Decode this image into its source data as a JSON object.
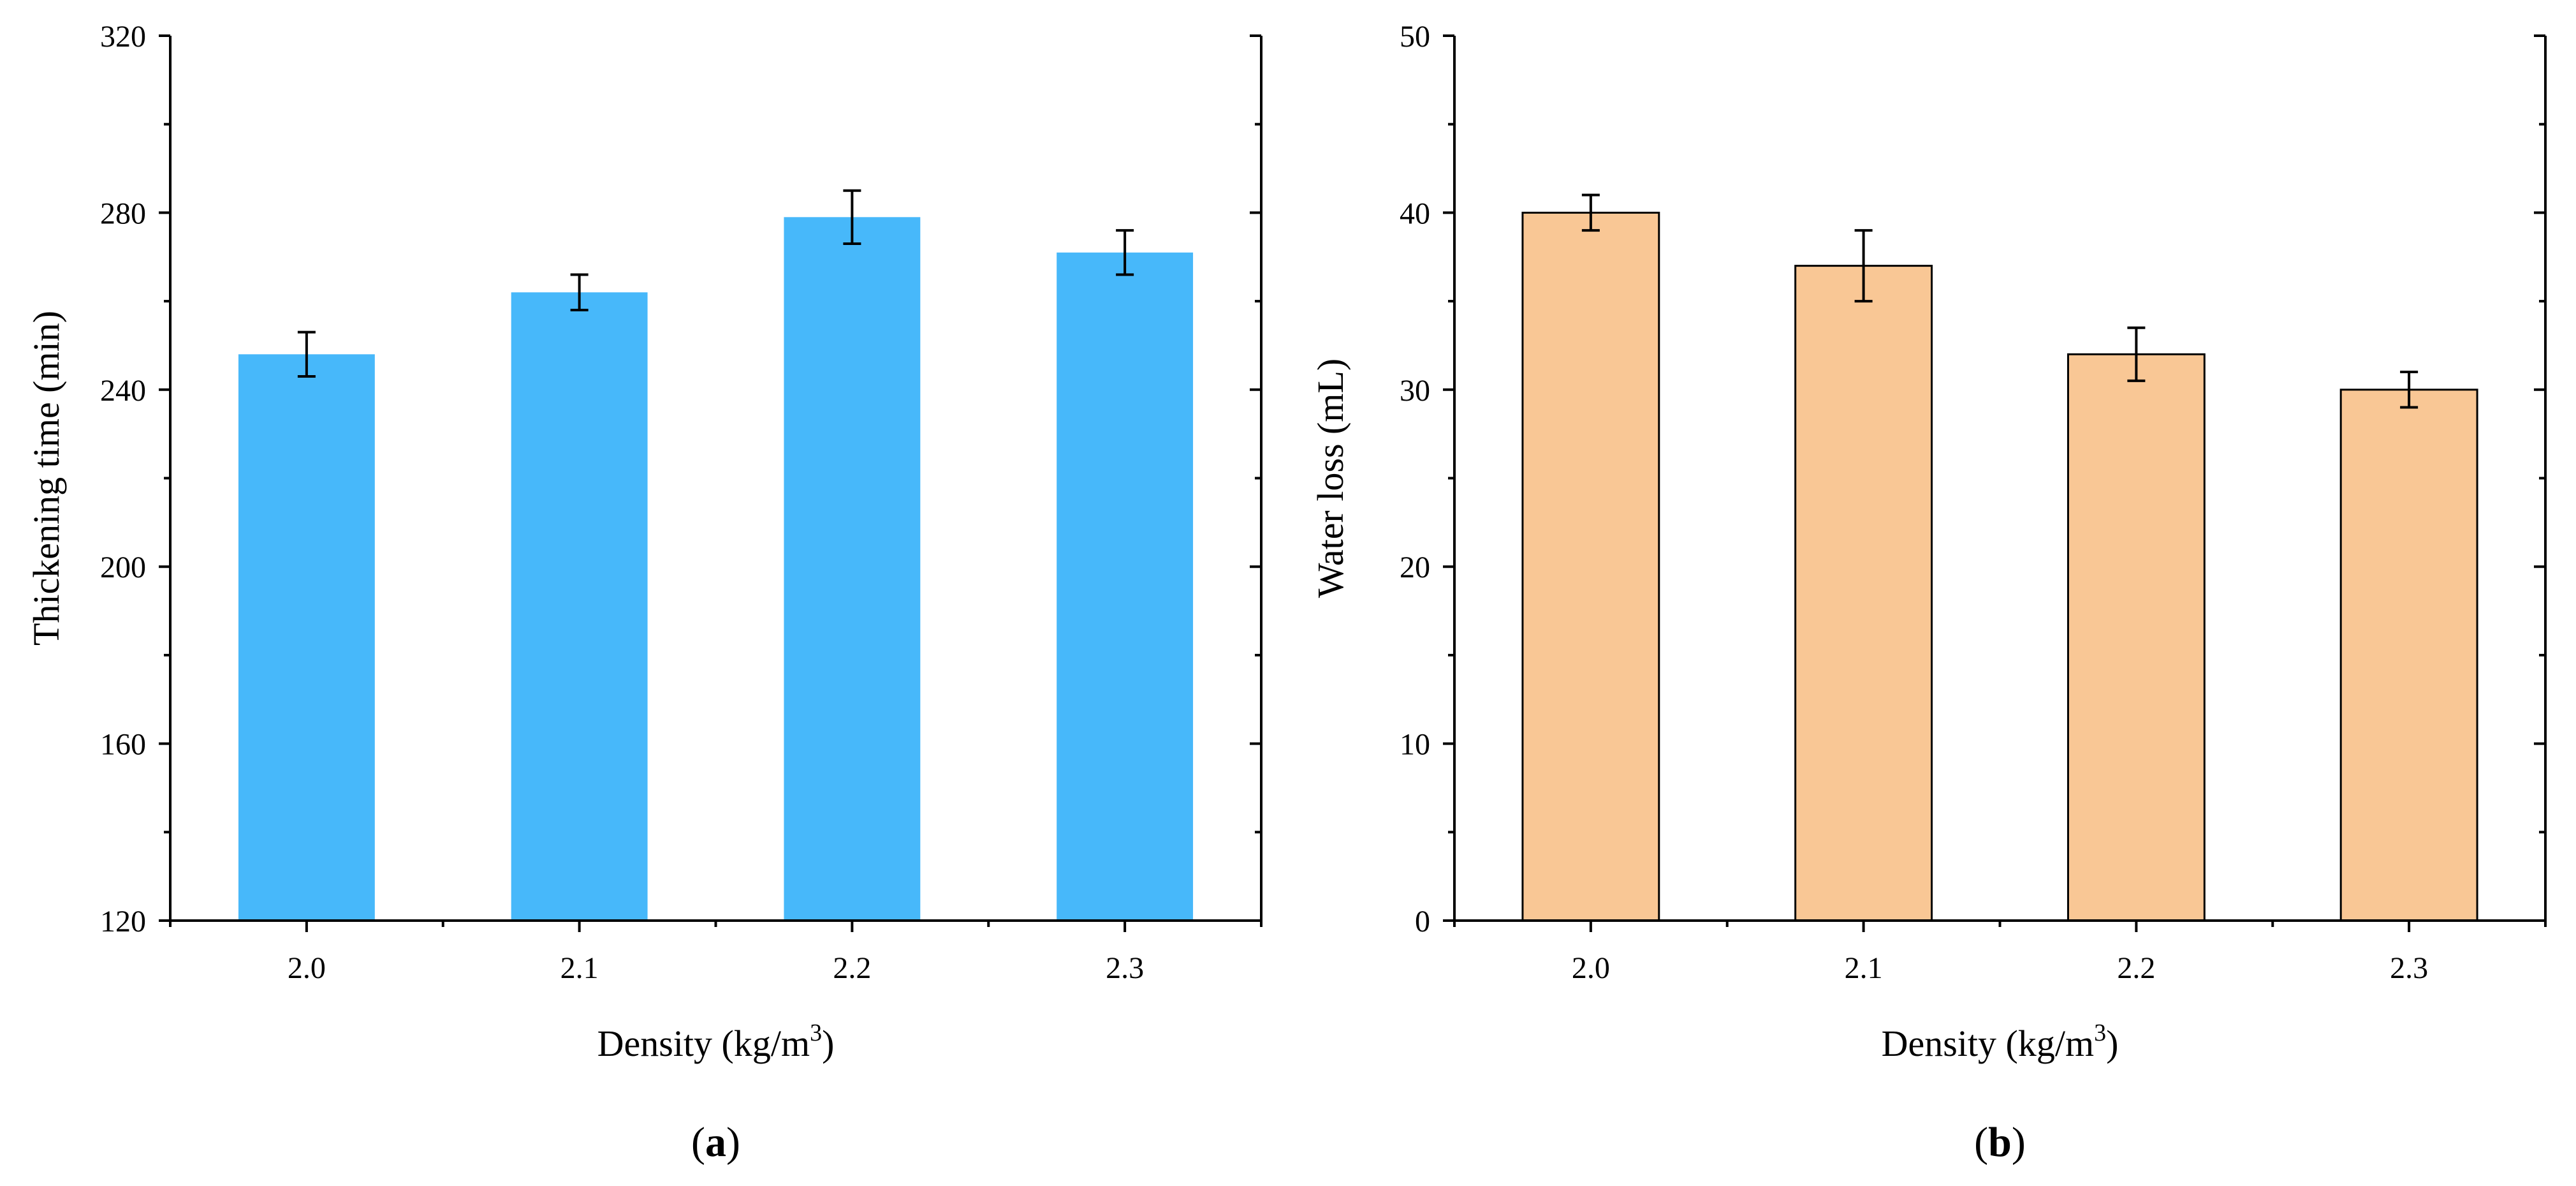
{
  "chart_data": [
    {
      "type": "bar",
      "panel_label": "a",
      "categories": [
        "2.0",
        "2.1",
        "2.2",
        "2.3"
      ],
      "values": [
        248,
        262,
        279,
        271
      ],
      "errors": [
        5,
        4,
        6,
        5
      ],
      "xlabel": "Density (kg/m",
      "xlabel_sup": "3",
      "xlabel_end": ")",
      "ylabel": "Thickening time (min)",
      "ylim": [
        120,
        320
      ],
      "yticks": [
        120,
        160,
        200,
        240,
        280,
        320
      ],
      "ytick_labels": [
        "120",
        "160",
        "200",
        "240",
        "280",
        "320"
      ],
      "bar_color": "#47b8fa",
      "bar_outline": false,
      "grid": false
    },
    {
      "type": "bar",
      "panel_label": "b",
      "categories": [
        "2.0",
        "2.1",
        "2.2",
        "2.3"
      ],
      "values": [
        40,
        37,
        32,
        30
      ],
      "errors": [
        1,
        2,
        1.5,
        1
      ],
      "xlabel": "Density (kg/m",
      "xlabel_sup": "3",
      "xlabel_end": ")",
      "ylabel": "Water loss (mL)",
      "ylim": [
        0,
        50
      ],
      "yticks": [
        0,
        10,
        20,
        30,
        40,
        50
      ],
      "ytick_labels": [
        "0",
        "10",
        "20",
        "30",
        "40",
        "50"
      ],
      "bar_color": "#f9c795",
      "bar_outline": true,
      "grid": false
    }
  ]
}
